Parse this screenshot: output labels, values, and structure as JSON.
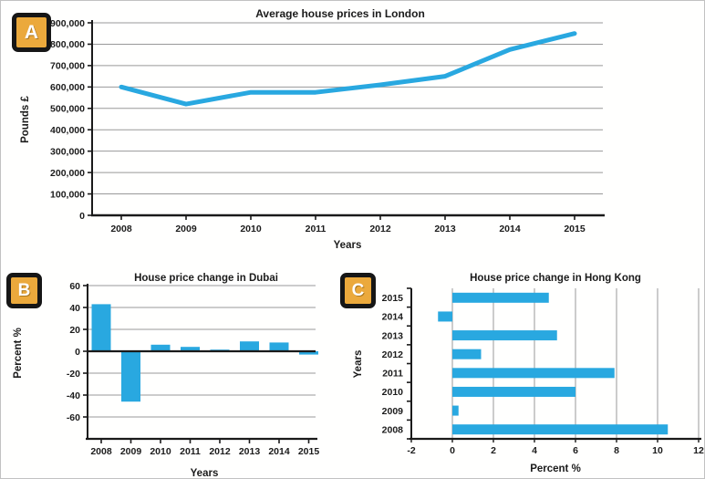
{
  "panels": [
    {
      "badge": "A"
    },
    {
      "badge": "B"
    },
    {
      "badge": "C"
    }
  ],
  "colors": {
    "series": "#29A8E0",
    "badge_bg": "#EBA93C",
    "badge_border": "#161616",
    "grid": "#999999",
    "axis": "#1a1a1a",
    "text": "#1b1b1b"
  },
  "chart_data": [
    {
      "id": "london",
      "type": "line",
      "title": "Average house prices in London",
      "xlabel": "Years",
      "ylabel": "Pounds £",
      "x": [
        2008,
        2009,
        2010,
        2011,
        2012,
        2013,
        2014,
        2015
      ],
      "values": [
        600000,
        520000,
        575000,
        575000,
        610000,
        650000,
        775000,
        850000
      ],
      "ylim": [
        0,
        900000
      ],
      "yticks": [
        0,
        100000,
        200000,
        300000,
        400000,
        500000,
        600000,
        700000,
        800000,
        900000
      ],
      "grid": true,
      "legend": "none",
      "color": "#29A8E0"
    },
    {
      "id": "dubai",
      "type": "bar",
      "title": "House price change in Dubai",
      "xlabel": "Years",
      "ylabel": "Percent %",
      "categories": [
        2008,
        2009,
        2010,
        2011,
        2012,
        2013,
        2014,
        2015
      ],
      "values": [
        43,
        -46,
        6,
        4,
        1.5,
        9,
        8,
        -3
      ],
      "ylim": [
        -80,
        60
      ],
      "yticks": [
        60,
        40,
        20,
        0,
        -20,
        -40,
        -60
      ],
      "grid": true,
      "legend": "none",
      "color": "#29A8E0"
    },
    {
      "id": "hongkong",
      "type": "horizontal-bar",
      "title": "House price change in Hong Kong",
      "xlabel": "Percent %",
      "ylabel": "Years",
      "categories": [
        2015,
        2014,
        2013,
        2012,
        2011,
        2010,
        2009,
        2008
      ],
      "values": [
        4.7,
        -0.7,
        5.1,
        1.4,
        7.9,
        6.0,
        0.3,
        10.5
      ],
      "xlim": [
        -2,
        12
      ],
      "xticks": [
        -2,
        0,
        2,
        4,
        6,
        8,
        10,
        12
      ],
      "grid": true,
      "legend": "none",
      "color": "#29A8E0"
    }
  ]
}
